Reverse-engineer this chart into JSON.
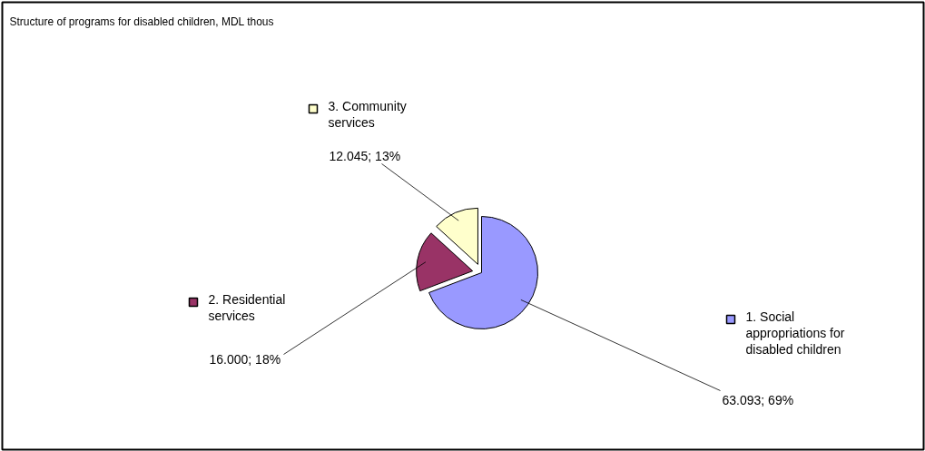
{
  "chart_data": {
    "type": "pie",
    "title": "Structure of programs for disabled children, MDL thous",
    "categories": [
      "1. Social appropriations for disabled children",
      "2. Residential services",
      "3. Community services"
    ],
    "values": [
      63.093,
      16.0,
      12.045
    ],
    "colors": [
      "#9999ff",
      "#993366",
      "#ffffcc"
    ],
    "value_labels": [
      "63.093; 69%",
      "16.000; 18%",
      "12.045; 13%"
    ],
    "legend": "right"
  }
}
